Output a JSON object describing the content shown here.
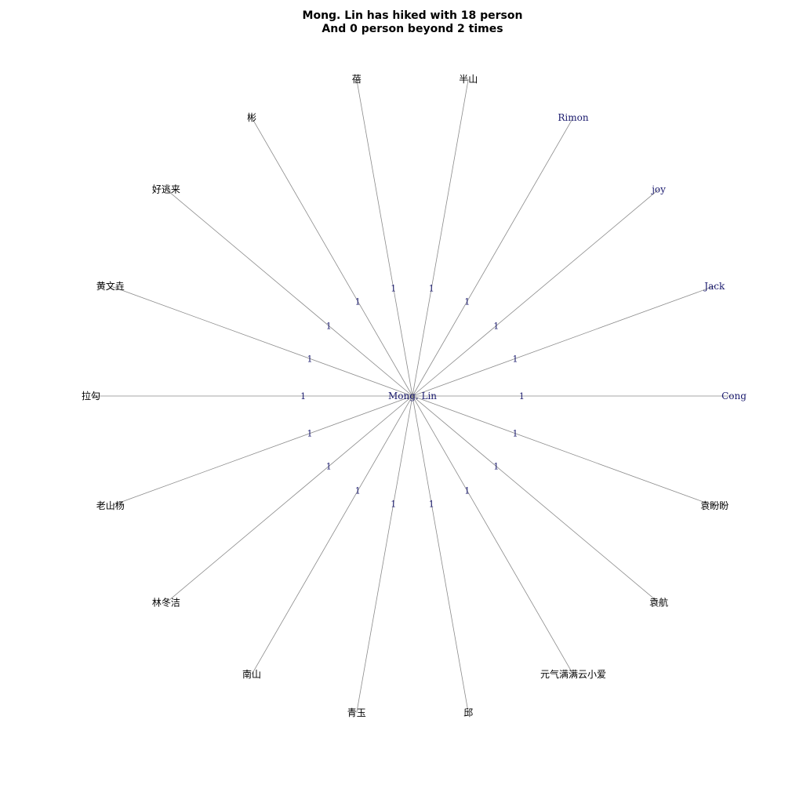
{
  "title": {
    "line1": "Mong. Lin has hiked with 18 person",
    "line2": "And 0 person beyond 2 times"
  },
  "center": {
    "label": "Mong. Lin"
  },
  "nodes": [
    {
      "label": "Cong",
      "weight": "1"
    },
    {
      "label": "Jack",
      "weight": "1"
    },
    {
      "label": "joy",
      "weight": "1"
    },
    {
      "label": "Rimon",
      "weight": "1"
    },
    {
      "label": "半山",
      "weight": "1"
    },
    {
      "label": "蓓",
      "weight": "1"
    },
    {
      "label": "彬",
      "weight": "1"
    },
    {
      "label": "好逃来",
      "weight": "1"
    },
    {
      "label": "黄文垚",
      "weight": "1"
    },
    {
      "label": "拉勾",
      "weight": "1"
    },
    {
      "label": "老山杨",
      "weight": "1"
    },
    {
      "label": "林冬洁",
      "weight": "1"
    },
    {
      "label": "南山",
      "weight": "1"
    },
    {
      "label": "青玉",
      "weight": "1"
    },
    {
      "label": "邱",
      "weight": "1"
    },
    {
      "label": "元气满满云小爱",
      "weight": "1"
    },
    {
      "label": "袁航",
      "weight": "1"
    },
    {
      "label": "袁盼盼",
      "weight": "1"
    }
  ]
}
